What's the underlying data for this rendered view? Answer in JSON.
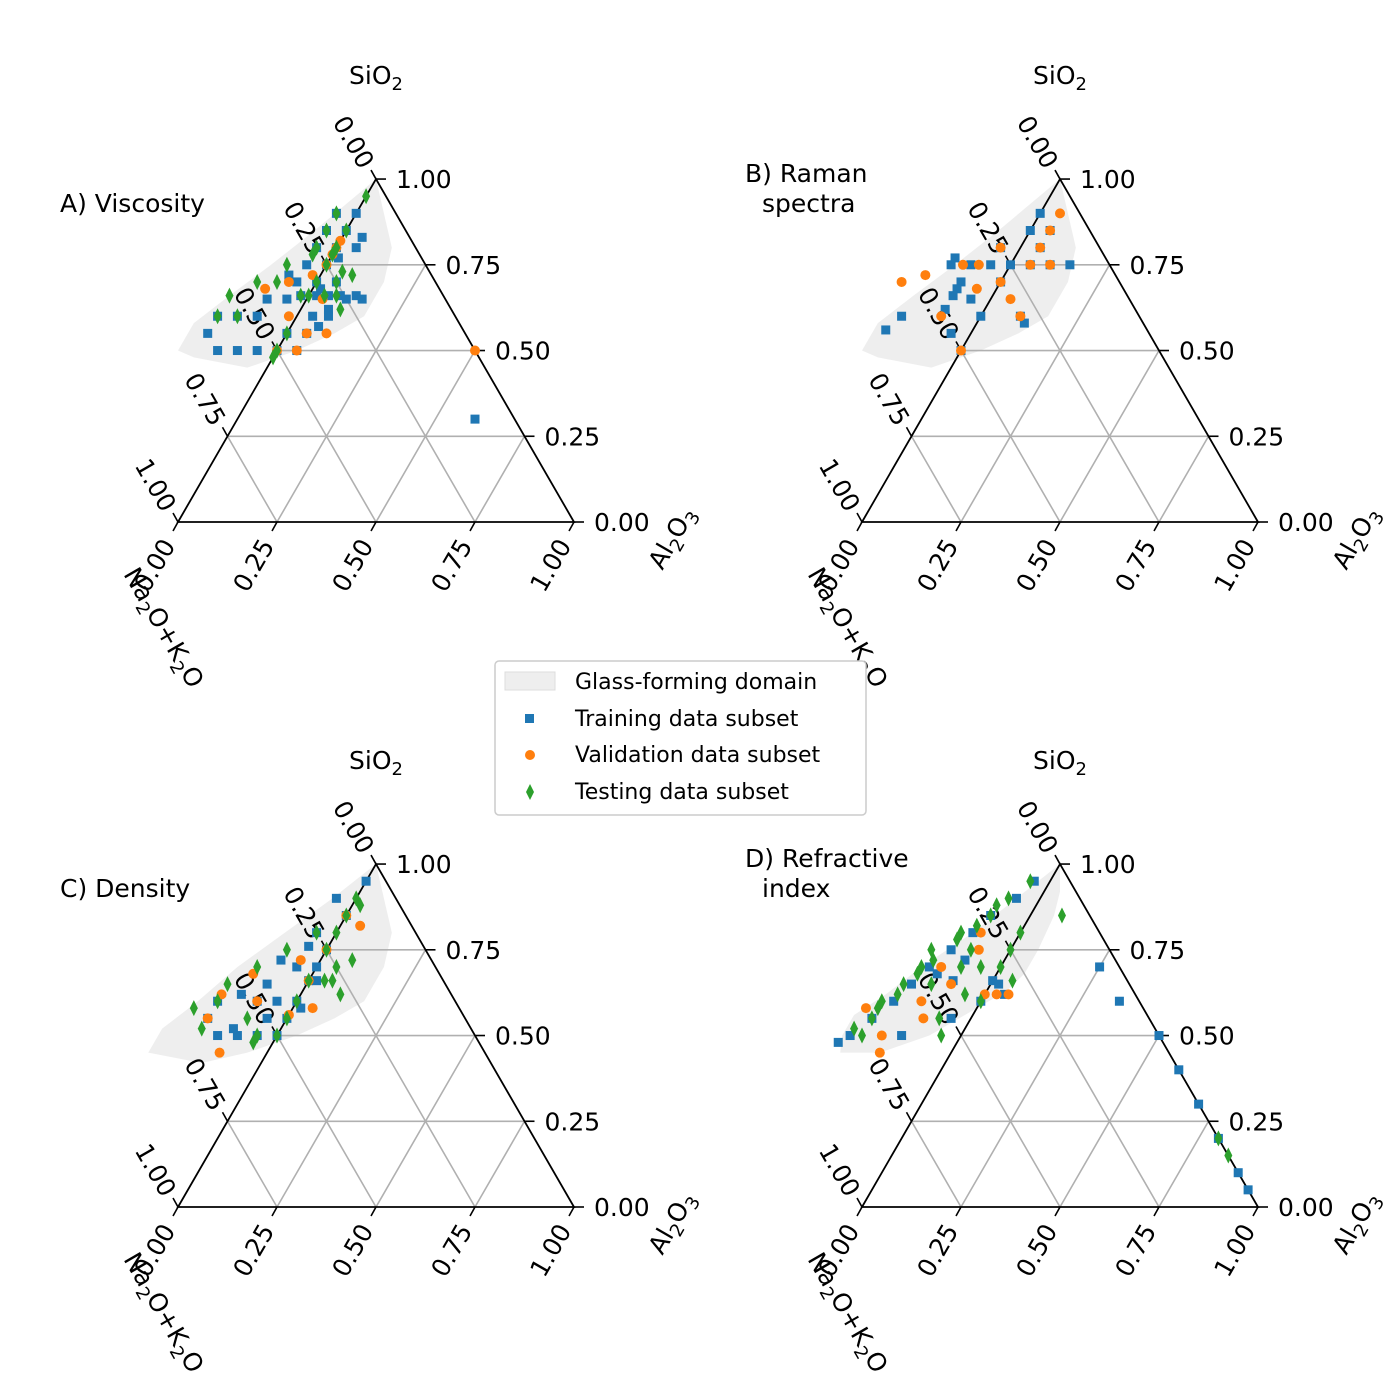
{
  "figure": {
    "axis_titles": {
      "top": [
        "SiO",
        "2",
        ""
      ],
      "left": [
        "Na",
        "2",
        "O+K",
        "2",
        "O"
      ],
      "right": [
        "Al",
        "2",
        "O",
        "3"
      ]
    },
    "ticks": [
      "0.00",
      "0.25",
      "0.50",
      "0.75",
      "1.00"
    ],
    "colors": {
      "training": "#1f77b4",
      "validation": "#ff7f0e",
      "testing": "#2ca02c",
      "domain_fill": "#e8e8e8",
      "grid": "#b0b0b0",
      "frame": "#000000"
    }
  },
  "legend": {
    "items": [
      {
        "key": "domain",
        "label": "Glass-forming domain"
      },
      {
        "key": "training",
        "label": "Training data subset"
      },
      {
        "key": "validation",
        "label": "Validation data subset"
      },
      {
        "key": "testing",
        "label": "Testing data subset"
      }
    ]
  },
  "chart_data": [
    {
      "type": "scatter",
      "title_lines": [
        "A) Viscosity"
      ],
      "coordinates": "ternary [SiO2, Al2O3]; Na2O+K2O = 1 - SiO2 - Al2O3",
      "glass_domain": [
        [
          1.0,
          0.0
        ],
        [
          0.9,
          0.07
        ],
        [
          0.8,
          0.14
        ],
        [
          0.7,
          0.17
        ],
        [
          0.6,
          0.17
        ],
        [
          0.55,
          0.12
        ],
        [
          0.5,
          0.05
        ],
        [
          0.45,
          -0.05
        ],
        [
          0.48,
          -0.2
        ],
        [
          0.5,
          -0.25
        ],
        [
          0.58,
          -0.25
        ],
        [
          0.66,
          -0.2
        ],
        [
          0.75,
          -0.14
        ],
        [
          0.85,
          -0.08
        ],
        [
          1.0,
          0.0
        ]
      ],
      "training": [
        [
          0.5,
          0.0
        ],
        [
          0.5,
          -0.05
        ],
        [
          0.5,
          -0.1
        ],
        [
          0.5,
          -0.15
        ],
        [
          0.55,
          -0.2
        ],
        [
          0.6,
          -0.2
        ],
        [
          0.6,
          -0.15
        ],
        [
          0.6,
          -0.1
        ],
        [
          0.65,
          -0.1
        ],
        [
          0.65,
          -0.05
        ],
        [
          0.7,
          -0.05
        ],
        [
          0.7,
          0.0
        ],
        [
          0.75,
          0.0
        ],
        [
          0.75,
          -0.05
        ],
        [
          0.8,
          -0.05
        ],
        [
          0.8,
          0.0
        ],
        [
          0.85,
          0.0
        ],
        [
          0.85,
          -0.05
        ],
        [
          0.9,
          0.0
        ],
        [
          0.9,
          -0.05
        ],
        [
          0.66,
          0.05
        ],
        [
          0.66,
          0.08
        ],
        [
          0.65,
          0.1
        ],
        [
          0.62,
          0.07
        ],
        [
          0.6,
          0.04
        ],
        [
          0.57,
          0.07
        ],
        [
          0.55,
          0.0
        ],
        [
          0.55,
          0.05
        ],
        [
          0.5,
          0.05
        ],
        [
          0.66,
          -0.02
        ],
        [
          0.7,
          0.05
        ],
        [
          0.68,
          0.02
        ],
        [
          0.6,
          0.08
        ],
        [
          0.8,
          0.05
        ],
        [
          0.77,
          0.02
        ],
        [
          0.83,
          0.05
        ],
        [
          0.66,
          0.02
        ],
        [
          0.66,
          0.12
        ],
        [
          0.65,
          0.14
        ],
        [
          0.3,
          0.6
        ],
        [
          0.72,
          -0.08
        ]
      ],
      "validation": [
        [
          0.82,
          0.0
        ],
        [
          0.78,
          0.0
        ],
        [
          0.75,
          0.0
        ],
        [
          0.7,
          -0.07
        ],
        [
          0.68,
          -0.12
        ],
        [
          0.6,
          -0.02
        ],
        [
          0.55,
          0.05
        ],
        [
          0.5,
          0.05
        ],
        [
          0.5,
          0.0
        ],
        [
          0.55,
          0.1
        ],
        [
          0.65,
          0.04
        ],
        [
          0.8,
          0.0
        ],
        [
          0.72,
          -0.02
        ],
        [
          0.5,
          0.5
        ]
      ],
      "testing": [
        [
          0.5,
          0.0
        ],
        [
          0.48,
          0.0
        ],
        [
          0.6,
          -0.2
        ],
        [
          0.6,
          -0.15
        ],
        [
          0.66,
          -0.2
        ],
        [
          0.7,
          -0.15
        ],
        [
          0.66,
          0.07
        ],
        [
          0.66,
          0.04
        ],
        [
          0.7,
          0.05
        ],
        [
          0.73,
          0.05
        ],
        [
          0.75,
          0.0
        ],
        [
          0.78,
          0.0
        ],
        [
          0.8,
          0.0
        ],
        [
          0.8,
          -0.05
        ],
        [
          0.85,
          0.0
        ],
        [
          0.85,
          -0.05
        ],
        [
          0.9,
          -0.05
        ],
        [
          0.62,
          0.1
        ],
        [
          0.66,
          0.0
        ],
        [
          0.66,
          -0.02
        ],
        [
          0.7,
          0.0
        ],
        [
          0.72,
          0.08
        ],
        [
          0.75,
          -0.1
        ],
        [
          0.55,
          0.0
        ],
        [
          0.95,
          0.0
        ],
        [
          0.78,
          -0.05
        ],
        [
          0.7,
          -0.1
        ]
      ]
    },
    {
      "type": "scatter",
      "title_lines": [
        "B) Raman",
        "spectra"
      ],
      "coordinates": "ternary [SiO2, Al2O3]; Na2O+K2O = 1 - SiO2 - Al2O3",
      "glass_domain": [
        [
          1.0,
          0.0
        ],
        [
          0.9,
          0.07
        ],
        [
          0.8,
          0.14
        ],
        [
          0.7,
          0.17
        ],
        [
          0.6,
          0.17
        ],
        [
          0.55,
          0.12
        ],
        [
          0.5,
          0.05
        ],
        [
          0.45,
          -0.05
        ],
        [
          0.48,
          -0.2
        ],
        [
          0.5,
          -0.25
        ],
        [
          0.58,
          -0.25
        ],
        [
          0.66,
          -0.2
        ],
        [
          0.75,
          -0.14
        ],
        [
          0.85,
          -0.08
        ],
        [
          1.0,
          0.0
        ]
      ],
      "training": [
        [
          0.85,
          0.0
        ],
        [
          0.85,
          0.05
        ],
        [
          0.9,
          0.0
        ],
        [
          0.8,
          0.05
        ],
        [
          0.75,
          0.0
        ],
        [
          0.75,
          0.05
        ],
        [
          0.75,
          0.1
        ],
        [
          0.75,
          0.15
        ],
        [
          0.75,
          -0.05
        ],
        [
          0.75,
          -0.1
        ],
        [
          0.75,
          -0.15
        ],
        [
          0.7,
          -0.1
        ],
        [
          0.68,
          -0.1
        ],
        [
          0.66,
          -0.1
        ],
        [
          0.62,
          -0.1
        ],
        [
          0.6,
          -0.2
        ],
        [
          0.6,
          0.1
        ],
        [
          0.55,
          -0.05
        ],
        [
          0.5,
          0.0
        ],
        [
          0.65,
          -0.05
        ],
        [
          0.6,
          0.0
        ],
        [
          0.7,
          0.0
        ],
        [
          0.58,
          0.12
        ],
        [
          0.8,
          -0.05
        ],
        [
          0.77,
          -0.15
        ],
        [
          0.56,
          -0.22
        ]
      ],
      "validation": [
        [
          0.9,
          0.05
        ],
        [
          0.85,
          0.05
        ],
        [
          0.8,
          0.05
        ],
        [
          0.75,
          0.05
        ],
        [
          0.75,
          0.1
        ],
        [
          0.75,
          -0.08
        ],
        [
          0.75,
          -0.12
        ],
        [
          0.72,
          -0.2
        ],
        [
          0.7,
          -0.25
        ],
        [
          0.68,
          -0.05
        ],
        [
          0.6,
          -0.1
        ],
        [
          0.6,
          0.1
        ],
        [
          0.5,
          0.0
        ],
        [
          0.65,
          0.05
        ],
        [
          0.7,
          0.0
        ],
        [
          0.8,
          -0.05
        ]
      ],
      "testing": []
    },
    {
      "type": "scatter",
      "title_lines": [
        "C) Density"
      ],
      "coordinates": "ternary [SiO2, Al2O3]; Na2O+K2O = 1 - SiO2 - Al2O3",
      "glass_domain": [
        [
          1.0,
          0.0
        ],
        [
          0.9,
          0.07
        ],
        [
          0.8,
          0.14
        ],
        [
          0.7,
          0.17
        ],
        [
          0.6,
          0.17
        ],
        [
          0.55,
          0.12
        ],
        [
          0.5,
          0.05
        ],
        [
          0.45,
          -0.05
        ],
        [
          0.42,
          -0.15
        ],
        [
          0.45,
          -0.3
        ],
        [
          0.52,
          -0.3
        ],
        [
          0.6,
          -0.25
        ],
        [
          0.7,
          -0.2
        ],
        [
          0.8,
          -0.13
        ],
        [
          0.9,
          -0.06
        ],
        [
          1.0,
          0.0
        ]
      ],
      "training": [
        [
          0.5,
          0.0
        ],
        [
          0.5,
          -0.05
        ],
        [
          0.5,
          -0.1
        ],
        [
          0.5,
          -0.15
        ],
        [
          0.55,
          -0.2
        ],
        [
          0.6,
          -0.2
        ],
        [
          0.62,
          -0.15
        ],
        [
          0.65,
          -0.1
        ],
        [
          0.7,
          -0.05
        ],
        [
          0.75,
          0.0
        ],
        [
          0.8,
          -0.05
        ],
        [
          0.85,
          0.0
        ],
        [
          0.9,
          -0.05
        ],
        [
          0.6,
          0.0
        ],
        [
          0.6,
          -0.05
        ],
        [
          0.55,
          -0.05
        ],
        [
          0.7,
          0.0
        ],
        [
          0.66,
          0.0
        ],
        [
          0.66,
          0.02
        ],
        [
          0.58,
          0.02
        ],
        [
          0.55,
          0.0
        ],
        [
          0.5,
          0.0
        ],
        [
          0.52,
          -0.12
        ],
        [
          0.6,
          -0.1
        ],
        [
          0.95,
          0.0
        ],
        [
          0.72,
          -0.1
        ],
        [
          0.76,
          -0.05
        ]
      ],
      "validation": [
        [
          0.85,
          0.0
        ],
        [
          0.82,
          0.05
        ],
        [
          0.75,
          0.0
        ],
        [
          0.72,
          -0.05
        ],
        [
          0.66,
          0.0
        ],
        [
          0.6,
          -0.1
        ],
        [
          0.55,
          -0.2
        ],
        [
          0.45,
          -0.12
        ],
        [
          0.62,
          -0.2
        ],
        [
          0.68,
          -0.15
        ],
        [
          0.58,
          0.05
        ],
        [
          0.56,
          0.0
        ]
      ],
      "testing": [
        [
          0.5,
          0.0
        ],
        [
          0.5,
          -0.05
        ],
        [
          0.48,
          -0.05
        ],
        [
          0.52,
          -0.2
        ],
        [
          0.6,
          -0.2
        ],
        [
          0.65,
          -0.2
        ],
        [
          0.7,
          -0.15
        ],
        [
          0.75,
          -0.1
        ],
        [
          0.8,
          -0.05
        ],
        [
          0.85,
          0.0
        ],
        [
          0.9,
          0.0
        ],
        [
          0.55,
          0.0
        ],
        [
          0.6,
          0.0
        ],
        [
          0.66,
          0.0
        ],
        [
          0.66,
          0.04
        ],
        [
          0.7,
          0.05
        ],
        [
          0.72,
          0.08
        ],
        [
          0.75,
          0.0
        ],
        [
          0.8,
          0.0
        ],
        [
          0.55,
          -0.1
        ],
        [
          0.62,
          0.1
        ],
        [
          0.58,
          -0.25
        ],
        [
          0.88,
          0.02
        ],
        [
          0.66,
          0.06
        ]
      ]
    },
    {
      "type": "scatter",
      "title_lines": [
        "D) Refractive",
        "index"
      ],
      "coordinates": "ternary [SiO2, Al2O3]; Na2O+K2O = 1 - SiO2 - Al2O3",
      "glass_domain": [
        [
          1.0,
          0.0
        ],
        [
          0.92,
          0.04
        ],
        [
          0.85,
          0.06
        ],
        [
          0.75,
          0.07
        ],
        [
          0.68,
          0.07
        ],
        [
          0.63,
          0.05
        ],
        [
          0.58,
          0.0
        ],
        [
          0.5,
          -0.08
        ],
        [
          0.45,
          -0.18
        ],
        [
          0.45,
          -0.28
        ],
        [
          0.5,
          -0.3
        ],
        [
          0.56,
          -0.3
        ],
        [
          0.62,
          -0.25
        ],
        [
          0.7,
          -0.2
        ],
        [
          0.8,
          -0.12
        ],
        [
          0.9,
          -0.06
        ],
        [
          1.0,
          0.0
        ]
      ],
      "training": [
        [
          0.95,
          -0.04
        ],
        [
          0.9,
          -0.06
        ],
        [
          0.85,
          -0.1
        ],
        [
          0.8,
          -0.12
        ],
        [
          0.75,
          -0.15
        ],
        [
          0.7,
          -0.18
        ],
        [
          0.65,
          -0.2
        ],
        [
          0.6,
          -0.22
        ],
        [
          0.55,
          -0.25
        ],
        [
          0.5,
          -0.28
        ],
        [
          0.48,
          -0.3
        ],
        [
          0.66,
          -0.1
        ],
        [
          0.66,
          0.0
        ],
        [
          0.65,
          0.02
        ],
        [
          0.62,
          0.05
        ],
        [
          0.6,
          0.0
        ],
        [
          0.55,
          -0.05
        ],
        [
          0.5,
          -0.15
        ],
        [
          0.5,
          0.5
        ],
        [
          0.4,
          0.6
        ],
        [
          0.3,
          0.7
        ],
        [
          0.2,
          0.8
        ],
        [
          0.1,
          0.9
        ],
        [
          0.05,
          0.95
        ],
        [
          0.7,
          0.25
        ],
        [
          0.6,
          0.35
        ],
        [
          0.72,
          -0.1
        ],
        [
          0.68,
          -0.15
        ]
      ],
      "validation": [
        [
          0.62,
          0.06
        ],
        [
          0.62,
          0.03
        ],
        [
          0.62,
          0.0
        ],
        [
          0.65,
          -0.1
        ],
        [
          0.7,
          -0.15
        ],
        [
          0.75,
          -0.08
        ],
        [
          0.8,
          -0.1
        ],
        [
          0.45,
          -0.18
        ],
        [
          0.5,
          -0.2
        ],
        [
          0.55,
          -0.12
        ],
        [
          0.6,
          -0.15
        ],
        [
          0.58,
          -0.28
        ]
      ],
      "testing": [
        [
          0.95,
          -0.05
        ],
        [
          0.9,
          -0.08
        ],
        [
          0.88,
          -0.1
        ],
        [
          0.85,
          -0.1
        ],
        [
          0.82,
          -0.12
        ],
        [
          0.8,
          -0.15
        ],
        [
          0.78,
          -0.15
        ],
        [
          0.75,
          -0.2
        ],
        [
          0.72,
          -0.18
        ],
        [
          0.7,
          -0.2
        ],
        [
          0.68,
          -0.2
        ],
        [
          0.65,
          -0.22
        ],
        [
          0.62,
          -0.22
        ],
        [
          0.6,
          -0.25
        ],
        [
          0.58,
          -0.25
        ],
        [
          0.55,
          -0.25
        ],
        [
          0.52,
          -0.28
        ],
        [
          0.5,
          -0.25
        ],
        [
          0.75,
          -0.1
        ],
        [
          0.7,
          -0.1
        ],
        [
          0.65,
          -0.15
        ],
        [
          0.62,
          -0.05
        ],
        [
          0.6,
          0.0
        ],
        [
          0.55,
          -0.08
        ],
        [
          0.5,
          -0.05
        ],
        [
          0.75,
          0.0
        ],
        [
          0.7,
          0.0
        ],
        [
          0.8,
          0.0
        ],
        [
          0.66,
          0.05
        ],
        [
          0.85,
          0.08
        ],
        [
          0.2,
          0.8
        ],
        [
          0.15,
          0.85
        ],
        [
          0.7,
          -0.05
        ]
      ]
    }
  ]
}
